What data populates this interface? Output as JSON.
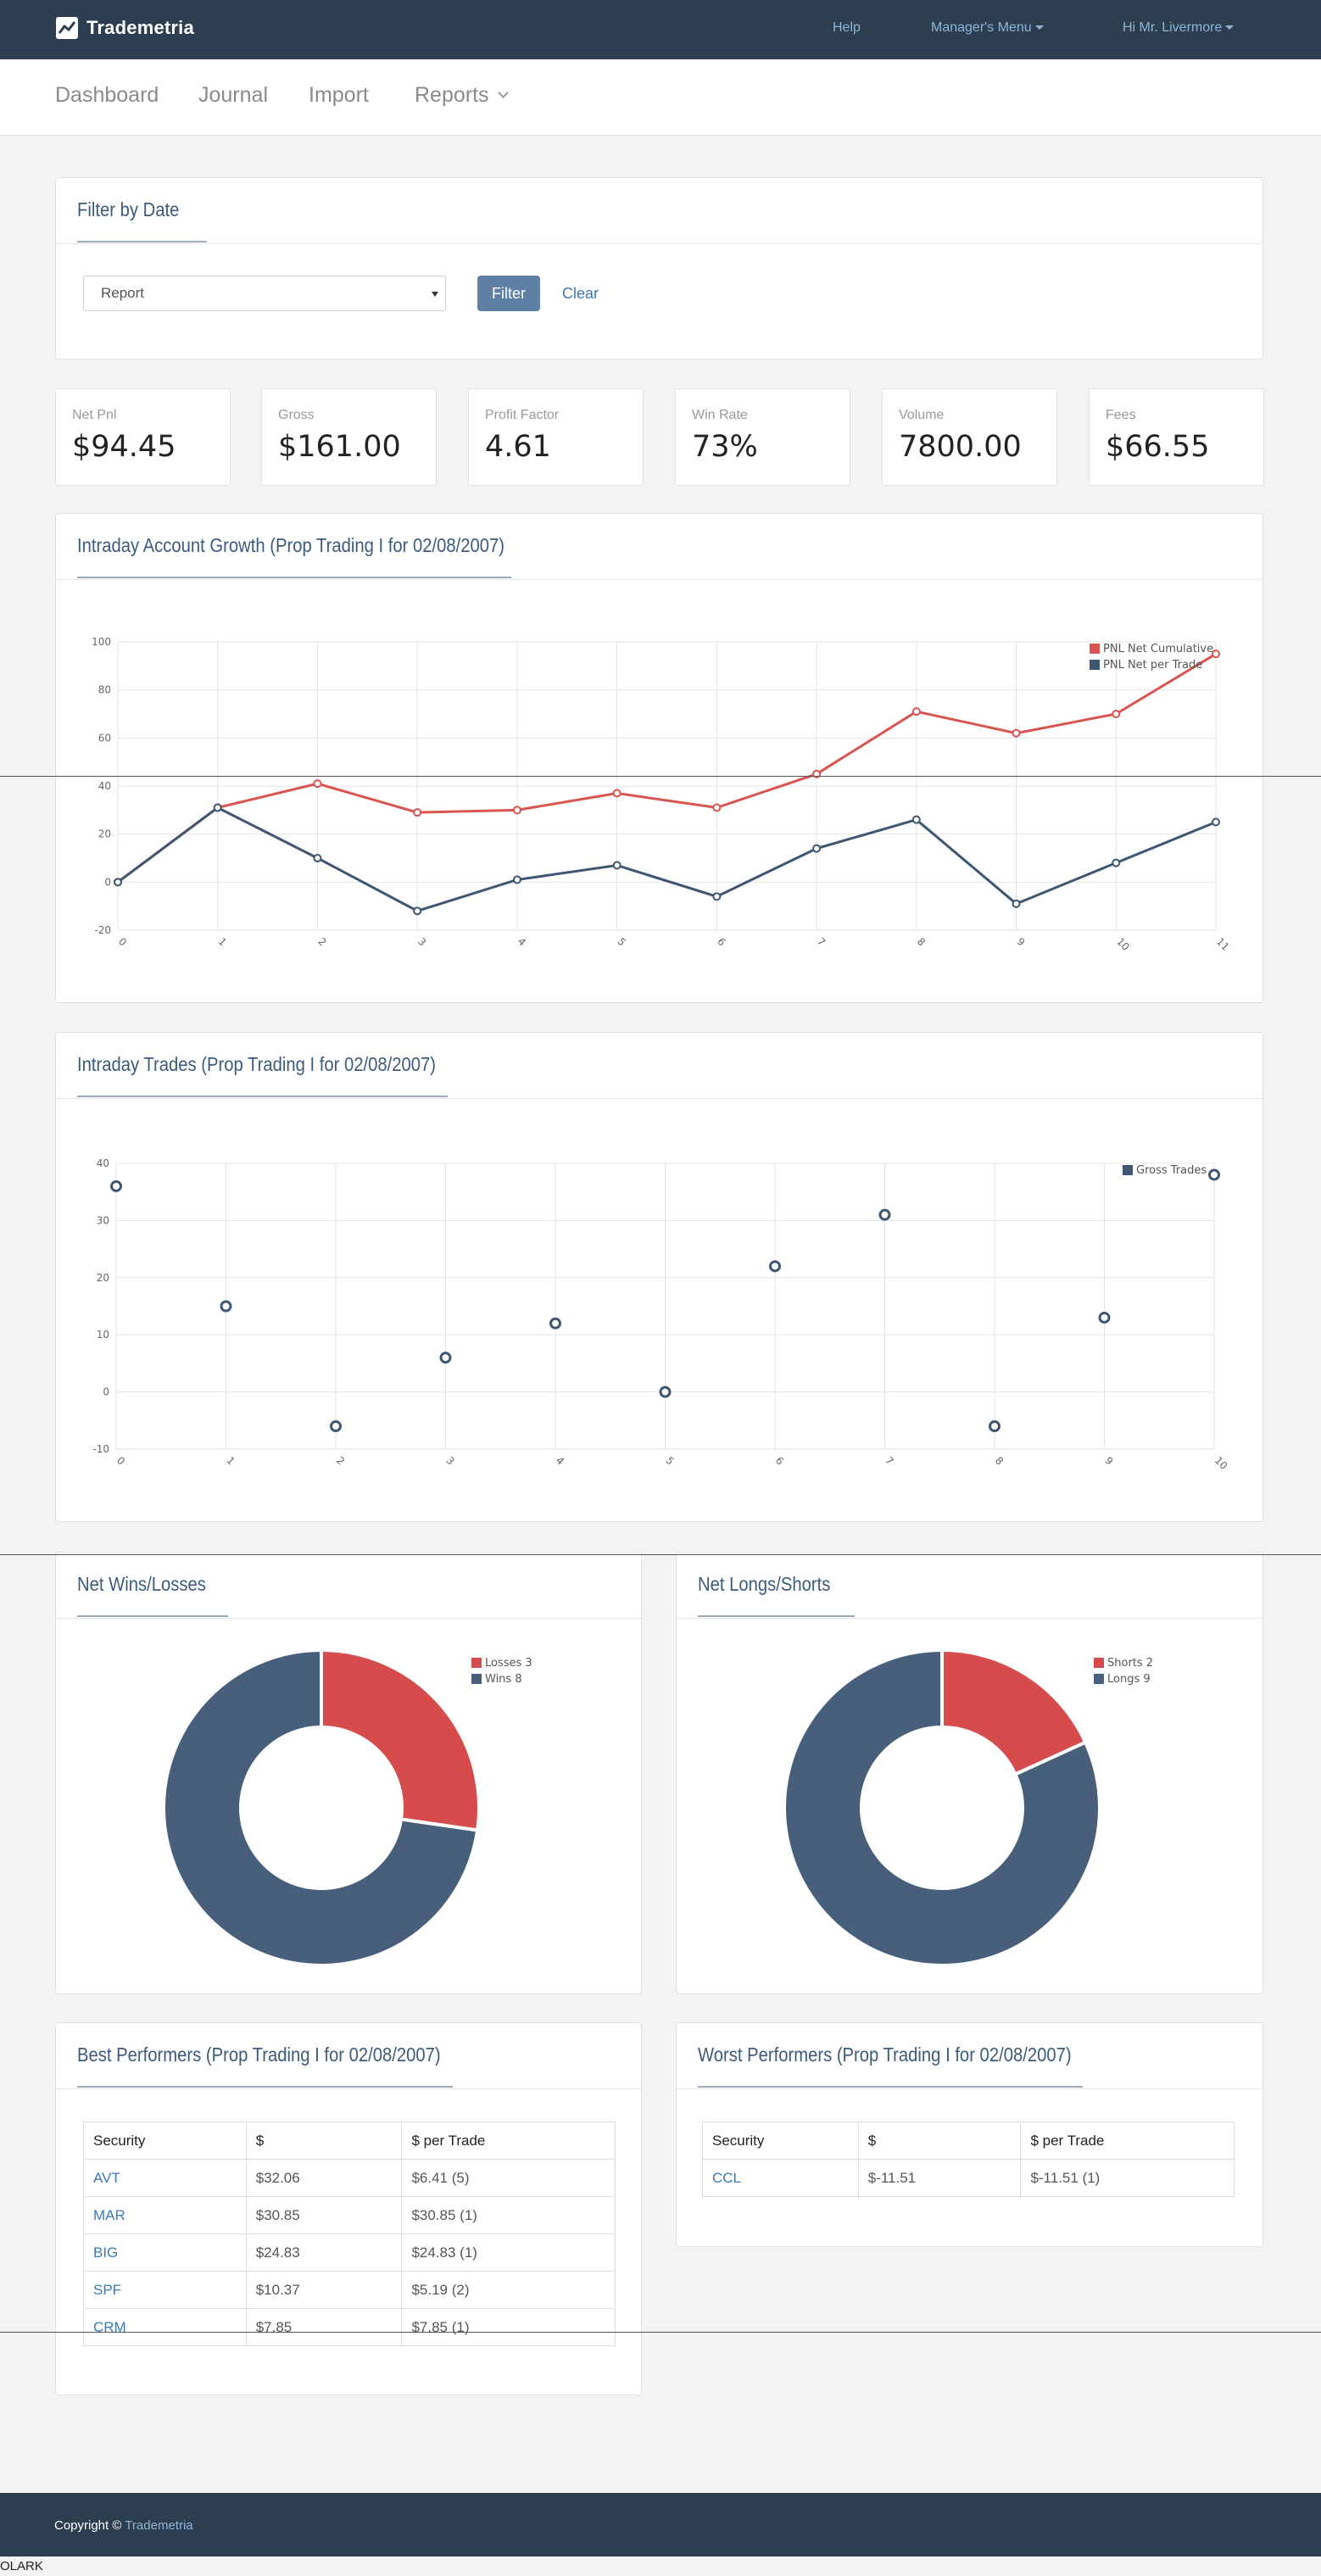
{
  "app": {
    "name": "Trademetria"
  },
  "topnav": {
    "help": "Help",
    "managers_menu": "Manager's Menu",
    "user_menu": "Hi Mr. Livermore"
  },
  "subnav": {
    "dashboard": "Dashboard",
    "journal": "Journal",
    "import": "Import",
    "reports": "Reports"
  },
  "filter": {
    "title": "Filter by Date",
    "select_value": "Report",
    "filter_label": "Filter",
    "clear_label": "Clear"
  },
  "stats": [
    {
      "label": "Net Pnl",
      "value": "$94.45"
    },
    {
      "label": "Gross",
      "value": "$161.00"
    },
    {
      "label": "Profit Factor",
      "value": "4.61"
    },
    {
      "label": "Win Rate",
      "value": "73%"
    },
    {
      "label": "Volume",
      "value": "7800.00"
    },
    {
      "label": "Fees",
      "value": "$66.55"
    }
  ],
  "charts": {
    "growth_title": "Intraday Account Growth (Prop Trading I for 02/08/2007)",
    "trades_title": "Intraday Trades (Prop Trading I for 02/08/2007)",
    "winloss_title": "Net Wins/Losses",
    "longshort_title": "Net Longs/Shorts"
  },
  "chart_data": [
    {
      "type": "line",
      "x": [
        0,
        1,
        2,
        3,
        4,
        5,
        6,
        7,
        8,
        9,
        10,
        11
      ],
      "ylim": [
        -20,
        100
      ],
      "yticks": [
        -20,
        0,
        20,
        40,
        60,
        80,
        100
      ],
      "grid": true,
      "legend": "top-right",
      "series": [
        {
          "name": "PNL Net Cumulative",
          "color": "#d9534f",
          "values": [
            0,
            31,
            41,
            29,
            30,
            37,
            31,
            45,
            71,
            62,
            70,
            95
          ]
        },
        {
          "name": "PNL Net per Trade",
          "color": "#3e5672",
          "values": [
            0,
            31,
            10,
            -12,
            1,
            7,
            -6,
            14,
            26,
            -9,
            8,
            25
          ]
        }
      ]
    },
    {
      "type": "scatter",
      "x": [
        0,
        1,
        2,
        3,
        4,
        5,
        6,
        7,
        8,
        9,
        10
      ],
      "ylim": [
        -10,
        40
      ],
      "yticks": [
        -10,
        0,
        10,
        20,
        30,
        40
      ],
      "grid": true,
      "legend": "top-right",
      "series": [
        {
          "name": "Gross Trades",
          "color": "#3e5672",
          "values": [
            36,
            15,
            -6,
            6,
            12,
            0,
            22,
            31,
            -6,
            13,
            38
          ]
        }
      ]
    },
    {
      "type": "pie",
      "donut": true,
      "legend": "top-right",
      "series": [
        {
          "name": "Losses",
          "value": 3,
          "label": "Losses 3",
          "color": "#d64b4b"
        },
        {
          "name": "Wins",
          "value": 8,
          "label": "Wins 8",
          "color": "#475f7b"
        }
      ]
    },
    {
      "type": "pie",
      "donut": true,
      "legend": "top-right",
      "series": [
        {
          "name": "Shorts",
          "value": 2,
          "label": "Shorts 2",
          "color": "#d64b4b"
        },
        {
          "name": "Longs",
          "value": 9,
          "label": "Longs 9",
          "color": "#475f7b"
        }
      ]
    }
  ],
  "best": {
    "title": "Best Performers (Prop Trading I for 02/08/2007)",
    "headers": [
      "Security",
      "$",
      "$ per Trade"
    ],
    "rows": [
      [
        "AVT",
        "$32.06",
        "$6.41 (5)"
      ],
      [
        "MAR",
        "$30.85",
        "$30.85 (1)"
      ],
      [
        "BIG",
        "$24.83",
        "$24.83 (1)"
      ],
      [
        "SPF",
        "$10.37",
        "$5.19 (2)"
      ],
      [
        "CRM",
        "$7.85",
        "$7.85 (1)"
      ]
    ]
  },
  "worst": {
    "title": "Worst Performers (Prop Trading I for 02/08/2007)",
    "headers": [
      "Security",
      "$",
      "$ per Trade"
    ],
    "rows": [
      [
        "CCL",
        "$-11.51",
        "$-11.51 (1)"
      ]
    ]
  },
  "footer": {
    "copyright": "Copyright ©",
    "link": "Trademetria"
  },
  "olark": "OLARK"
}
